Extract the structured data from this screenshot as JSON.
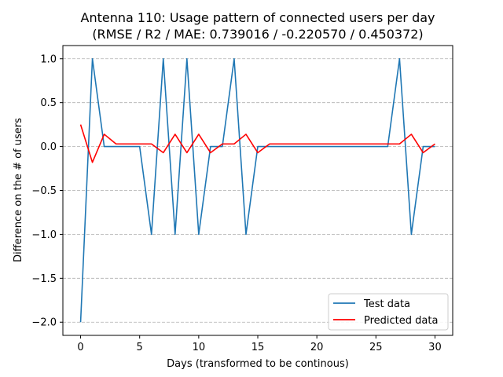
{
  "chart_data": {
    "type": "line",
    "title": "Antenna 110: Usage pattern of connected users per day",
    "subtitle": "(RMSE / R2 / MAE: 0.739016 / -0.220570 / 0.450372)",
    "xlabel": "Days (transformed to be continous)",
    "ylabel": "Difference on the # of users",
    "xlim": [
      -1.5,
      31.5
    ],
    "ylim": [
      -2.15,
      1.15
    ],
    "xticks": [
      0,
      5,
      10,
      15,
      20,
      25,
      30
    ],
    "xtick_labels": [
      "0",
      "5",
      "10",
      "15",
      "20",
      "25",
      "30"
    ],
    "yticks": [
      1.0,
      0.5,
      0.0,
      -0.5,
      -1.0,
      -1.5,
      -2.0
    ],
    "ytick_labels": [
      "1.0",
      "0.5",
      "0.0",
      "−0.5",
      "−1.0",
      "−1.5",
      "−2.0"
    ],
    "grid": "y-dashed",
    "legend_position": "lower-right",
    "x": [
      0,
      1,
      2,
      3,
      4,
      5,
      6,
      7,
      8,
      9,
      10,
      11,
      12,
      13,
      14,
      15,
      16,
      17,
      18,
      19,
      20,
      21,
      22,
      23,
      24,
      25,
      26,
      27,
      28,
      29,
      30
    ],
    "series": [
      {
        "name": "Test data",
        "color": "#1f77b4",
        "values": [
          -2,
          1,
          0,
          0,
          0,
          0,
          -1,
          1,
          -1,
          1,
          -1,
          0,
          0,
          1,
          -1,
          0,
          0,
          0,
          0,
          0,
          0,
          0,
          0,
          0,
          0,
          0,
          0,
          1,
          -1,
          0,
          0
        ]
      },
      {
        "name": "Predicted data",
        "color": "#ff0000",
        "values": [
          0.25,
          -0.18,
          0.14,
          0.03,
          0.03,
          0.03,
          0.03,
          -0.07,
          0.14,
          -0.07,
          0.14,
          -0.07,
          0.03,
          0.03,
          0.14,
          -0.07,
          0.03,
          0.03,
          0.03,
          0.03,
          0.03,
          0.03,
          0.03,
          0.03,
          0.03,
          0.03,
          0.03,
          0.03,
          0.14,
          -0.07,
          0.03
        ]
      }
    ]
  }
}
